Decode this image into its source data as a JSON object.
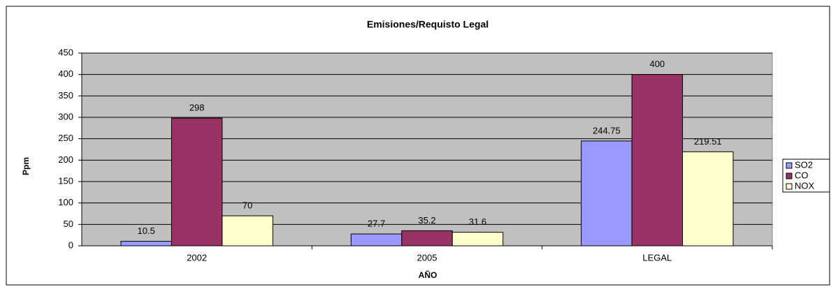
{
  "chart_data": {
    "type": "bar",
    "title": "Emisiones/Requisto Legal",
    "x_label": "AÑO",
    "y_label": "Ppm",
    "categories": [
      "2002",
      "2005",
      "LEGAL"
    ],
    "series": [
      {
        "name": "SO2",
        "color": "#9999ff",
        "values": [
          10.5,
          27.7,
          244.75
        ]
      },
      {
        "name": "CO",
        "color": "#993366",
        "values": [
          298,
          35.2,
          400
        ]
      },
      {
        "name": "NOX",
        "color": "#ffffcc",
        "values": [
          70,
          31.6,
          219.51
        ]
      }
    ],
    "ylim": [
      0,
      450
    ],
    "yticks": [
      0,
      50,
      100,
      150,
      200,
      250,
      300,
      350,
      400,
      450
    ],
    "grid": true,
    "legend": "right",
    "plot_background": "#c0c0c0"
  }
}
